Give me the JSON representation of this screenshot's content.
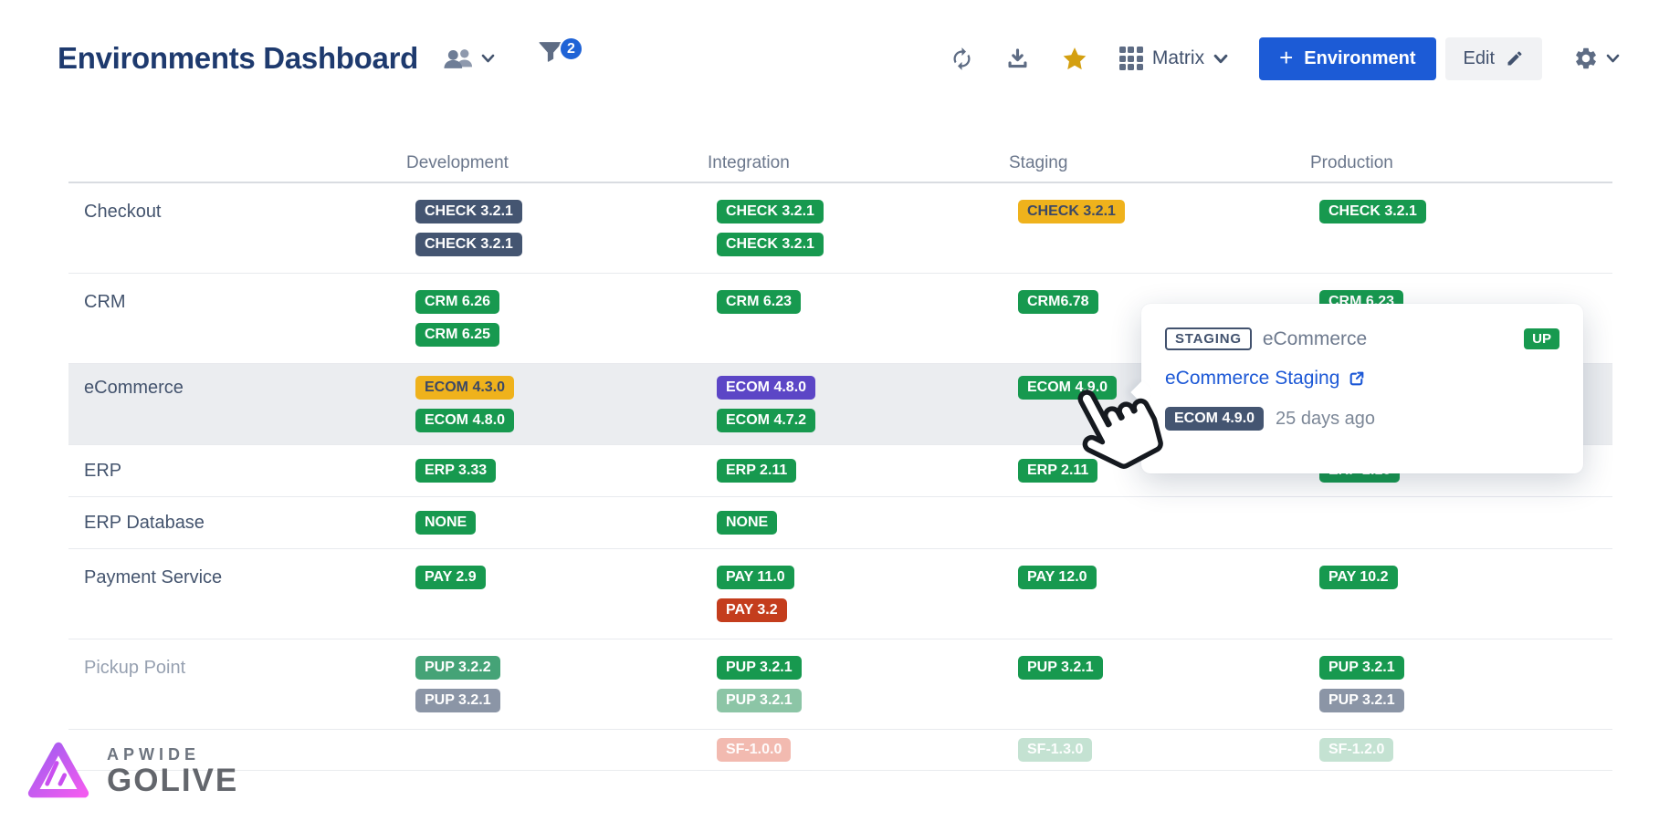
{
  "header": {
    "title": "Environments Dashboard",
    "filter_count": "2",
    "view_label": "Matrix",
    "add_plus": "+",
    "add_environment_label": "Environment",
    "edit_label": "Edit"
  },
  "matrix": {
    "columns": [
      "Development",
      "Integration",
      "Staging",
      "Production"
    ],
    "rows": [
      {
        "label": "Checkout",
        "muted": false,
        "highlight": false,
        "faded": false,
        "cells": [
          [
            {
              "text": "CHECK 3.2.1",
              "color": "slate"
            },
            {
              "text": "CHECK 3.2.1",
              "color": "slate"
            }
          ],
          [
            {
              "text": "CHECK 3.2.1",
              "color": "green"
            },
            {
              "text": "CHECK 3.2.1",
              "color": "green"
            }
          ],
          [
            {
              "text": "CHECK 3.2.1",
              "color": "yellow"
            }
          ],
          [
            {
              "text": "CHECK 3.2.1",
              "color": "green"
            }
          ]
        ]
      },
      {
        "label": "CRM",
        "muted": false,
        "highlight": false,
        "faded": false,
        "cells": [
          [
            {
              "text": "CRM 6.26",
              "color": "green"
            },
            {
              "text": "CRM 6.25",
              "color": "green"
            }
          ],
          [
            {
              "text": "CRM 6.23",
              "color": "green"
            }
          ],
          [
            {
              "text": "CRM6.78",
              "color": "green"
            }
          ],
          [
            {
              "text": "CRM 6.23",
              "color": "green"
            }
          ]
        ]
      },
      {
        "label": "eCommerce",
        "muted": false,
        "highlight": true,
        "faded": false,
        "cells": [
          [
            {
              "text": "ECOM 4.3.0",
              "color": "yellow"
            },
            {
              "text": "ECOM 4.8.0",
              "color": "green"
            }
          ],
          [
            {
              "text": "ECOM 4.8.0",
              "color": "purple"
            },
            {
              "text": "ECOM 4.7.2",
              "color": "green"
            }
          ],
          [
            {
              "text": "ECOM 4.9.0",
              "color": "green"
            }
          ],
          []
        ]
      },
      {
        "label": "ERP",
        "muted": false,
        "highlight": false,
        "faded": false,
        "cells": [
          [
            {
              "text": "ERP 3.33",
              "color": "green"
            }
          ],
          [
            {
              "text": "ERP 2.11",
              "color": "green"
            }
          ],
          [
            {
              "text": "ERP 2.11",
              "color": "green"
            }
          ],
          [
            {
              "text": "ERP 2.10",
              "color": "green"
            }
          ]
        ]
      },
      {
        "label": "ERP Database",
        "muted": false,
        "highlight": false,
        "faded": false,
        "cells": [
          [
            {
              "text": "NONE",
              "color": "green"
            }
          ],
          [
            {
              "text": "NONE",
              "color": "green"
            }
          ],
          [],
          []
        ]
      },
      {
        "label": "Payment Service",
        "muted": false,
        "highlight": false,
        "faded": false,
        "cells": [
          [
            {
              "text": "PAY 2.9",
              "color": "green"
            }
          ],
          [
            {
              "text": "PAY 11.0",
              "color": "green"
            },
            {
              "text": "PAY 3.2",
              "color": "red"
            }
          ],
          [
            {
              "text": "PAY 12.0",
              "color": "green"
            }
          ],
          [
            {
              "text": "PAY 10.2",
              "color": "green"
            }
          ]
        ]
      },
      {
        "label": "Pickup Point",
        "muted": true,
        "highlight": false,
        "faded": false,
        "cells": [
          [
            {
              "text": "PUP 3.2.2",
              "color": "green-soft"
            },
            {
              "text": "PUP 3.2.1",
              "color": "gray"
            }
          ],
          [
            {
              "text": "PUP 3.2.1",
              "color": "green"
            },
            {
              "text": "PUP 3.2.1",
              "color": "green-pale"
            }
          ],
          [
            {
              "text": "PUP 3.2.1",
              "color": "green"
            }
          ],
          [
            {
              "text": "PUP 3.2.1",
              "color": "green"
            },
            {
              "text": "PUP 3.2.1",
              "color": "gray"
            }
          ]
        ]
      },
      {
        "label": "",
        "muted": true,
        "highlight": false,
        "faded": true,
        "cells": [
          [],
          [
            {
              "text": "SF-1.0.0",
              "color": "salmon-faded"
            }
          ],
          [
            {
              "text": "SF-1.3.0",
              "color": "green-faded"
            }
          ],
          [
            {
              "text": "SF-1.2.0",
              "color": "green-faded"
            }
          ]
        ]
      }
    ]
  },
  "tooltip": {
    "category": "STAGING",
    "application": "eCommerce",
    "status": "UP",
    "link_label": "eCommerce Staging",
    "version": "ECOM 4.9.0",
    "deployed": "25 days ago"
  },
  "logo": {
    "brand": "APWIDE",
    "product": "GOLIVE"
  },
  "colors": {
    "accent_blue": "#1c5bd6",
    "filter_badge_blue": "#1f63d6",
    "link_blue": "#1c58d6",
    "badge_green": "#17994f",
    "badge_slate": "#445571",
    "badge_yellow": "#efb21c",
    "badge_purple": "#5c46c6",
    "badge_red": "#c43d1d",
    "badge_gray": "#8b95a6",
    "star_gold": "#d4a011",
    "title_navy": "#1e3a6e"
  }
}
